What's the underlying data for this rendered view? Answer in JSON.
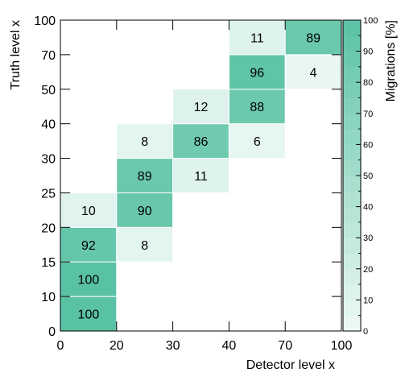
{
  "chart_data": {
    "type": "heatmap",
    "title": "",
    "xlabel": "Detector level x",
    "ylabel": "Truth level x",
    "colorbar_label": "Migrations [%]",
    "x_bins": [
      "0",
      "20",
      "30",
      "40",
      "70",
      "100"
    ],
    "y_bins": [
      "0",
      "10",
      "15",
      "20",
      "25",
      "30",
      "40",
      "50",
      "70",
      "100"
    ],
    "cells": [
      {
        "col": 0,
        "row": 0,
        "value": 100
      },
      {
        "col": 0,
        "row": 1,
        "value": 100
      },
      {
        "col": 0,
        "row": 2,
        "value": 92
      },
      {
        "col": 1,
        "row": 2,
        "value": 8
      },
      {
        "col": 0,
        "row": 3,
        "value": 10
      },
      {
        "col": 1,
        "row": 3,
        "value": 90
      },
      {
        "col": 1,
        "row": 4,
        "value": 89
      },
      {
        "col": 2,
        "row": 4,
        "value": 11
      },
      {
        "col": 1,
        "row": 5,
        "value": 8
      },
      {
        "col": 2,
        "row": 5,
        "value": 86
      },
      {
        "col": 3,
        "row": 5,
        "value": 6
      },
      {
        "col": 2,
        "row": 6,
        "value": 12
      },
      {
        "col": 3,
        "row": 6,
        "value": 88
      },
      {
        "col": 3,
        "row": 7,
        "value": 96
      },
      {
        "col": 4,
        "row": 7,
        "value": 4
      },
      {
        "col": 3,
        "row": 8,
        "value": 11
      },
      {
        "col": 4,
        "row": 8,
        "value": 89
      }
    ],
    "colorbar_ticks": [
      0,
      10,
      20,
      30,
      40,
      50,
      60,
      70,
      80,
      90,
      100
    ],
    "zlim": [
      0,
      100
    ],
    "color_low": "#ffffff",
    "color_high": "#5ac2a4",
    "grid": false
  }
}
